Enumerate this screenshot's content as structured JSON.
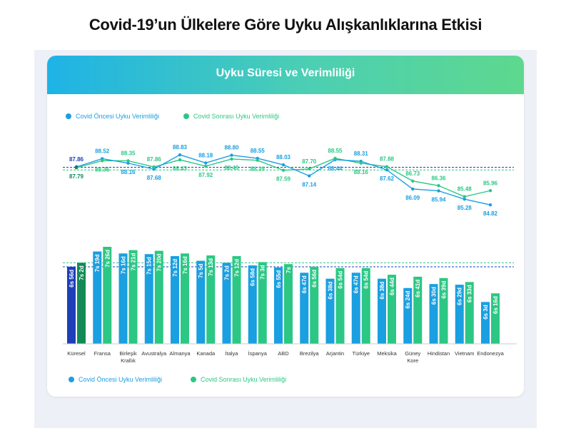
{
  "title": "Covid-19’un Ülkelere Göre Uyku Alışkanlıklarına Etkisi",
  "card_title": "Uyku Süresi ve Verimliliği",
  "legend": {
    "pre": "Covid Öncesi Uyku Verimliliği",
    "post": "Covid Sonrası Uyku Verimliliği"
  },
  "colors": {
    "pre": "#1a9fe0",
    "post": "#2cc784",
    "pre_global": "#1e3fb8",
    "post_global": "#138a55"
  },
  "chart_data": [
    {
      "type": "line",
      "categories": [
        "Küresel",
        "Fransa",
        "Birleşik Krallık",
        "Avustralya",
        "Almanya",
        "Kanada",
        "İtalya",
        "İspanya",
        "ABD",
        "Brezilya",
        "Arjantin",
        "Türkiye",
        "Meksika",
        "Güney Kore",
        "Hindistan",
        "Vietnam",
        "Endonezya"
      ],
      "series": [
        {
          "name": "Covid Öncesi Uyku Verimliliği",
          "values": [
            87.86,
            88.52,
            88.16,
            87.68,
            88.83,
            88.18,
            88.8,
            88.55,
            88.03,
            87.14,
            88.44,
            88.31,
            87.62,
            86.09,
            85.94,
            85.28,
            84.82
          ]
        },
        {
          "name": "Covid Sonrası Uyku Verimliliği",
          "values": [
            87.79,
            88.36,
            88.35,
            87.86,
            88.43,
            87.92,
            88.49,
            88.39,
            87.59,
            87.7,
            88.55,
            88.16,
            87.88,
            86.73,
            86.36,
            85.48,
            85.96
          ]
        }
      ],
      "ylim": [
        84.5,
        89.2
      ]
    },
    {
      "type": "bar",
      "categories": [
        "Küresel",
        "Fransa",
        "Birleşik Krallık",
        "Avustralya",
        "Almanya",
        "Kanada",
        "İtalya",
        "İspanya",
        "ABD",
        "Brezilya",
        "Arjantin",
        "Türkiye",
        "Meksika",
        "Güney Kore",
        "Hindistan",
        "Vietnam",
        "Endonezya"
      ],
      "category_lines": [
        [
          "Küresel"
        ],
        [
          "Fransa"
        ],
        [
          "Birleşik",
          "Krallık"
        ],
        [
          "Avustralya"
        ],
        [
          "Almanya"
        ],
        [
          "Kanada"
        ],
        [
          "İtalya"
        ],
        [
          "İspanya"
        ],
        [
          "ABD"
        ],
        [
          "Brezilya"
        ],
        [
          "Arjantin"
        ],
        [
          "Türkiye"
        ],
        [
          "Meksika"
        ],
        [
          "Güney",
          "Kore"
        ],
        [
          "Hindistan"
        ],
        [
          "Vietnam"
        ],
        [
          "Endonezya"
        ]
      ],
      "series": [
        {
          "name": "Covid Öncesi Uyku Verimliliği",
          "values": [
            416,
            439,
            436,
            435,
            432,
            425,
            422,
            418,
            415,
            407,
            398,
            407,
            398,
            384,
            390,
            389,
            363
          ],
          "labels": [
            "6s 56d",
            "7s 19d",
            "7s 16d",
            "7s 15d",
            "7s 12d",
            "7s 5d",
            "7s 2d",
            "6s 58d",
            "6s 55d",
            "6s 47d",
            "6s 38d",
            "6s 47d",
            "6s 38d",
            "6s 24d",
            "6s 30d",
            "6s 29d",
            "6s 3d"
          ]
        },
        {
          "name": "Covid Sonrası Uyku Verimliliği",
          "values": [
            422,
            446,
            441,
            440,
            436,
            433,
            432,
            423,
            420,
            416,
            414,
            414,
            404,
            401,
            399,
            393,
            376
          ],
          "labels": [
            "7s 2d",
            "7s 26d",
            "7s 21d",
            "7s 20d",
            "7s 16d",
            "7s 13d",
            "7s 12d",
            "7s 3d",
            "7s",
            "6s 56d",
            "6s 54d",
            "6s 54d",
            "6s 44d",
            "6s 41d",
            "6s 39d",
            "6s 33d",
            "6s 16d"
          ]
        }
      ],
      "unit": "minutes",
      "ylim": [
        300,
        450
      ]
    }
  ]
}
